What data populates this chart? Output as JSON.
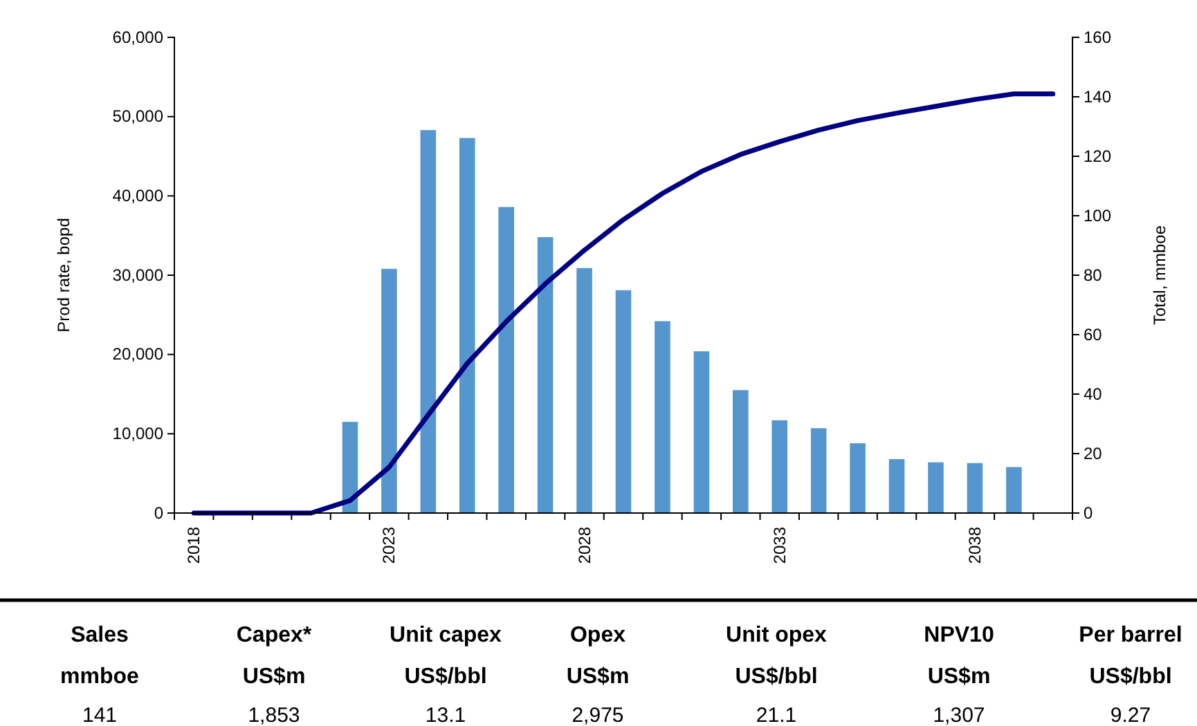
{
  "chart_data": {
    "type": "bar",
    "categories": [
      "2018",
      null,
      null,
      null,
      null,
      "2023",
      null,
      null,
      null,
      null,
      "2028",
      null,
      null,
      null,
      null,
      "2033",
      null,
      null,
      null,
      null,
      "2038",
      null,
      null
    ],
    "series": [
      {
        "color": "#5596cf",
        "values": [
          null,
          null,
          null,
          null,
          11500,
          30800,
          48300,
          47300,
          38600,
          34800,
          30900,
          28100,
          24200,
          20400,
          15500,
          11700,
          10700,
          8800,
          6800,
          6400,
          6300,
          5800,
          null
        ]
      },
      {
        "type": "line",
        "axis": "y2",
        "color": "#000080",
        "values": [
          0,
          0,
          0,
          0,
          4.2,
          15.4,
          33,
          50.3,
          64.4,
          77.1,
          88.4,
          98.7,
          107.5,
          114.9,
          120.6,
          124.9,
          128.8,
          132,
          134.5,
          136.8,
          139.1,
          141,
          141
        ]
      }
    ],
    "ylabel": "Prod rate, bopd",
    "y2label": "Total, mmboe",
    "ylim": [
      0,
      60000
    ],
    "yticks": [
      {
        "value": 0,
        "label": "0"
      },
      {
        "value": 10000,
        "label": "10,000"
      },
      {
        "value": 20000,
        "label": "20,000"
      },
      {
        "value": 30000,
        "label": "30,000"
      },
      {
        "value": 40000,
        "label": "40,000"
      },
      {
        "value": 50000,
        "label": "50,000"
      },
      {
        "value": 60000,
        "label": "60,000"
      }
    ],
    "y2lim": [
      0,
      160
    ],
    "y2ticks": [
      0,
      20,
      40,
      60,
      80,
      100,
      120,
      140,
      160
    ],
    "grid": false,
    "marker": "none",
    "line_style": "solid",
    "annotations": [
      "Sales",
      "Capex*",
      "Unit capex",
      "Opex",
      "Unit opex",
      "NPV10",
      "Per barrel",
      "mmboe",
      "US$m",
      "US$/bbl",
      "US$m",
      "US$/bbl",
      "US$m",
      "US$/bbl",
      "141",
      "1,853",
      "13.1",
      "2,975",
      "21.1",
      "1,307",
      "9.27"
    ]
  }
}
